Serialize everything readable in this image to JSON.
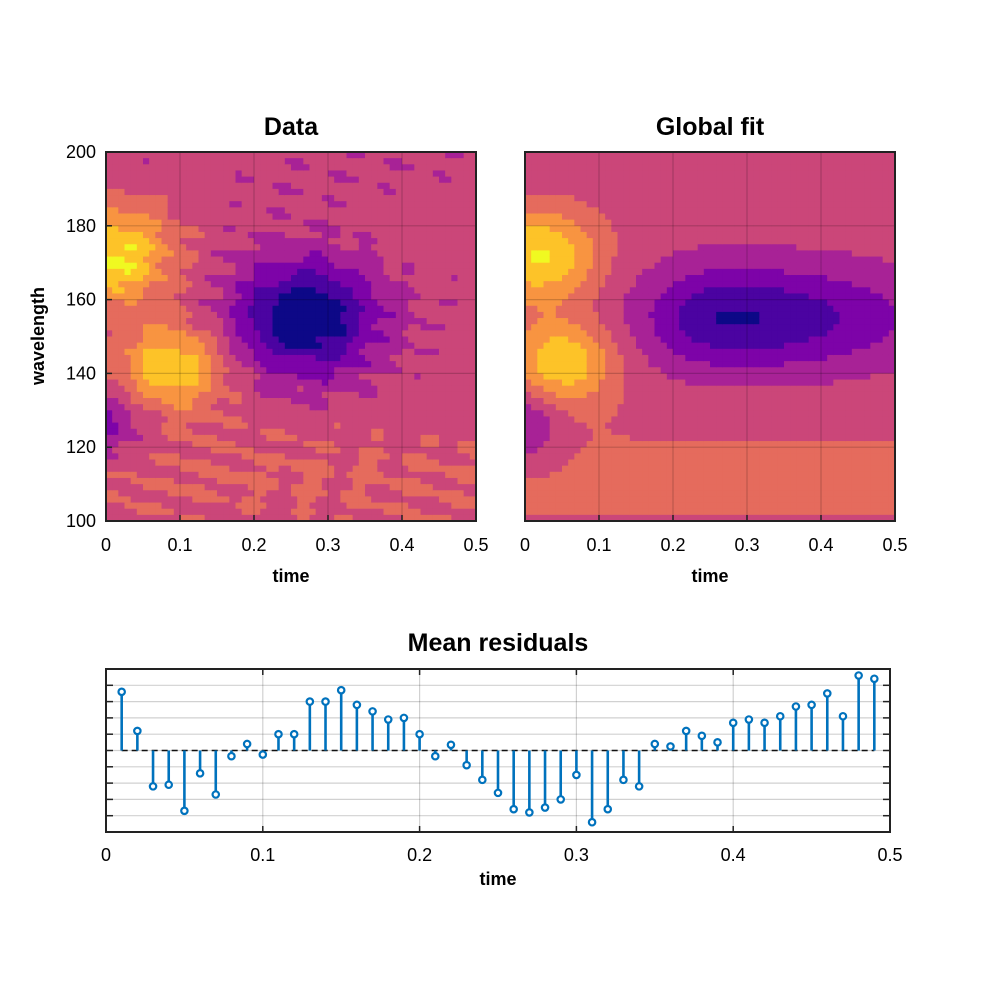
{
  "chart_data": [
    {
      "type": "heatmap",
      "title": "Data",
      "xlabel": "time",
      "ylabel": "wavelength",
      "xlim": [
        0,
        0.5
      ],
      "ylim": [
        100,
        200
      ],
      "xticks": [
        "0",
        "0.1",
        "0.2",
        "0.3",
        "0.4",
        "0.5"
      ],
      "yticks": [
        "100",
        "120",
        "140",
        "160",
        "180",
        "200"
      ],
      "grid": true,
      "colormap": [
        "#0d0887",
        "#4b03a1",
        "#7d03a8",
        "#a82296",
        "#cb4679",
        "#e56b5d",
        "#f89441",
        "#fdc328",
        "#f0f921"
      ],
      "features": [
        {
          "t": 0.01,
          "w": 172,
          "amplitude": 0.85
        },
        {
          "t": 0.09,
          "w": 142,
          "amplitude": 0.75
        },
        {
          "t": 0.0,
          "w": 126,
          "amplitude": -0.45
        },
        {
          "t": 0.27,
          "w": 155,
          "amplitude": -1.0
        }
      ]
    },
    {
      "type": "heatmap",
      "title": "Global fit",
      "xlabel": "time",
      "ylabel": "",
      "xlim": [
        0,
        0.5
      ],
      "ylim": [
        100,
        200
      ],
      "xticks": [
        "0",
        "0.1",
        "0.2",
        "0.3",
        "0.4",
        "0.5"
      ],
      "grid": true,
      "colormap": [
        "#0d0887",
        "#4b03a1",
        "#7d03a8",
        "#a82296",
        "#cb4679",
        "#e56b5d",
        "#f89441",
        "#fdc328",
        "#f0f921"
      ],
      "features": [
        {
          "t": 0.02,
          "w": 172,
          "amplitude": 0.8
        },
        {
          "t": 0.05,
          "w": 143,
          "amplitude": 0.75
        },
        {
          "t": 0.0,
          "w": 126,
          "amplitude": -0.45
        },
        {
          "t": 0.28,
          "w": 155,
          "amplitude": -0.8
        }
      ]
    },
    {
      "type": "stem",
      "title": "Mean residuals",
      "xlabel": "time",
      "xlim": [
        0,
        0.5
      ],
      "xticks": [
        "0",
        "0.1",
        "0.2",
        "0.3",
        "0.4",
        "0.5"
      ],
      "ylim": [
        -5,
        5
      ],
      "baseline": 0,
      "grid": true,
      "color": "#0072bd",
      "x": [
        0.01,
        0.02,
        0.03,
        0.04,
        0.05,
        0.06,
        0.07,
        0.08,
        0.09,
        0.1,
        0.11,
        0.12,
        0.13,
        0.14,
        0.15,
        0.16,
        0.17,
        0.18,
        0.19,
        0.2,
        0.21,
        0.22,
        0.23,
        0.24,
        0.25,
        0.26,
        0.27,
        0.28,
        0.29,
        0.3,
        0.31,
        0.32,
        0.33,
        0.34,
        0.35,
        0.36,
        0.37,
        0.38,
        0.39,
        0.4,
        0.41,
        0.42,
        0.43,
        0.44,
        0.45,
        0.46,
        0.47,
        0.48,
        0.49
      ],
      "y": [
        3.6,
        1.2,
        -2.2,
        -2.1,
        -3.7,
        -1.4,
        -2.7,
        -0.35,
        0.4,
        -0.25,
        1.0,
        1.0,
        3.0,
        3.0,
        3.7,
        2.8,
        2.4,
        1.9,
        2.0,
        1.0,
        -0.35,
        0.35,
        -0.9,
        -1.8,
        -2.6,
        -3.6,
        -3.8,
        -3.5,
        -3.0,
        -1.5,
        -4.4,
        -3.6,
        -1.8,
        -2.2,
        0.4,
        0.25,
        1.2,
        0.9,
        0.5,
        1.7,
        1.9,
        1.7,
        2.1,
        2.7,
        2.8,
        3.5,
        2.1,
        4.6,
        4.4
      ]
    }
  ]
}
